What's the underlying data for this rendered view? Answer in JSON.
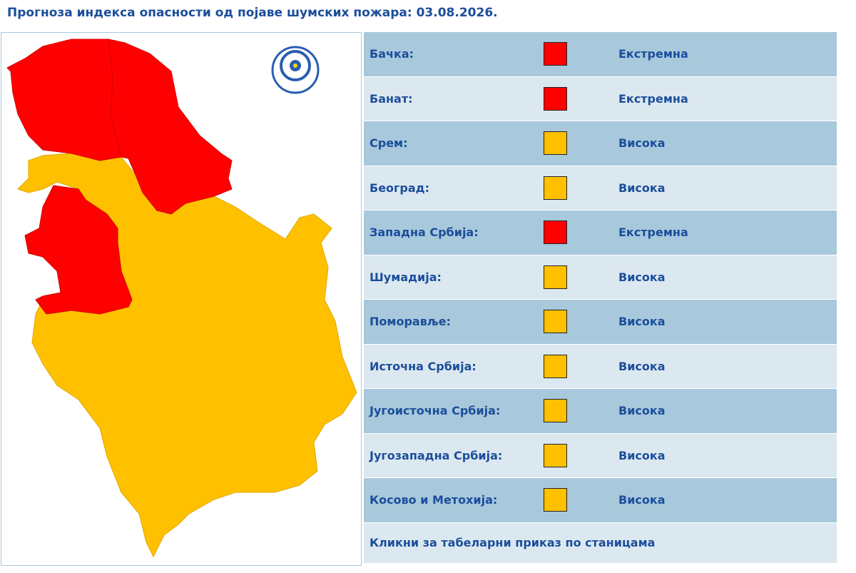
{
  "header": {
    "title": "Прогноза индекса опасности од појаве шумских пожара: 03.08.2026."
  },
  "table": {
    "rows": [
      {
        "region": "Бачка:",
        "level": "Екстремна",
        "color": "#ff0000"
      },
      {
        "region": "Банат:",
        "level": "Екстремна",
        "color": "#ff0000"
      },
      {
        "region": "Срем:",
        "level": "Висока",
        "color": "#ffc000"
      },
      {
        "region": "Београд:",
        "level": "Висока",
        "color": "#ffc000"
      },
      {
        "region": "Западна Србија:",
        "level": "Екстремна",
        "color": "#ff0000"
      },
      {
        "region": "Шумадија:",
        "level": "Висока",
        "color": "#ffc000"
      },
      {
        "region": "Поморавље:",
        "level": "Висока",
        "color": "#ffc000"
      },
      {
        "region": "Источна Србија:",
        "level": "Висока",
        "color": "#ffc000"
      },
      {
        "region": "Југоисточна Србија:",
        "level": "Висока",
        "color": "#ffc000"
      },
      {
        "region": "Југозападна Србија:",
        "level": "Висока",
        "color": "#ffc000"
      },
      {
        "region": "Косово и Метохија:",
        "level": "Висока",
        "color": "#ffc000"
      }
    ],
    "link": "Кликни за табеларни приказ по станицама"
  }
}
